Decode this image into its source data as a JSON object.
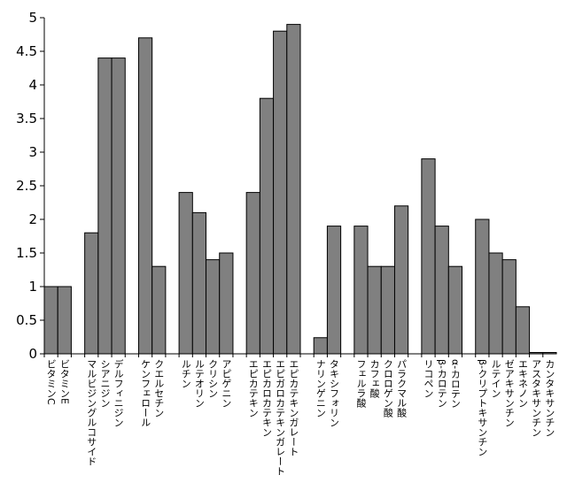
{
  "chart_data": {
    "type": "bar",
    "title": "",
    "xlabel": "",
    "ylabel": "",
    "ylim": [
      0,
      5
    ],
    "yticks": [
      "0",
      "0.5",
      "1",
      "1.5",
      "2",
      "2.5",
      "3",
      "3.5",
      "4",
      "4.5",
      "5"
    ],
    "grid": false,
    "legend": "none",
    "bar_color": "#808080",
    "bar_edge_color": "#000000",
    "categories": [
      "ビタミンC",
      "ビタミンE",
      "",
      "マルビジングルコサイド",
      "シアニジン",
      "デルフィニジン",
      "",
      "ケンフェロール",
      "クエルセチン",
      "",
      "ルチン",
      "ルテオリン",
      "クリシン",
      "アピゲニン",
      "",
      "エピカテキン",
      "エピカロカテキン",
      "エピガロカテキンガレート",
      "エピカテキンガレート",
      "",
      "ナリンゲニン",
      "タキシフォリン",
      "",
      "フェルラ酸",
      "カフェ酸",
      "クロロゲン酸",
      "パラクマル酸",
      "",
      "リコペン",
      "β-カロテン",
      "α-カロテン",
      "",
      "β-クリプトキサンチン",
      "ルテイン",
      "ゼアキサンチン",
      "エキネノン",
      "アスタキサンチン",
      "カンタキサンチン"
    ],
    "values": [
      1.0,
      1.0,
      null,
      1.8,
      4.4,
      4.4,
      null,
      4.7,
      1.3,
      null,
      2.4,
      2.1,
      1.4,
      1.5,
      null,
      2.4,
      3.8,
      4.8,
      4.9,
      null,
      0.24,
      1.9,
      null,
      1.9,
      1.3,
      1.3,
      2.2,
      null,
      2.9,
      1.9,
      1.3,
      null,
      2.0,
      1.5,
      1.4,
      0.7,
      0.02,
      0.02
    ]
  }
}
